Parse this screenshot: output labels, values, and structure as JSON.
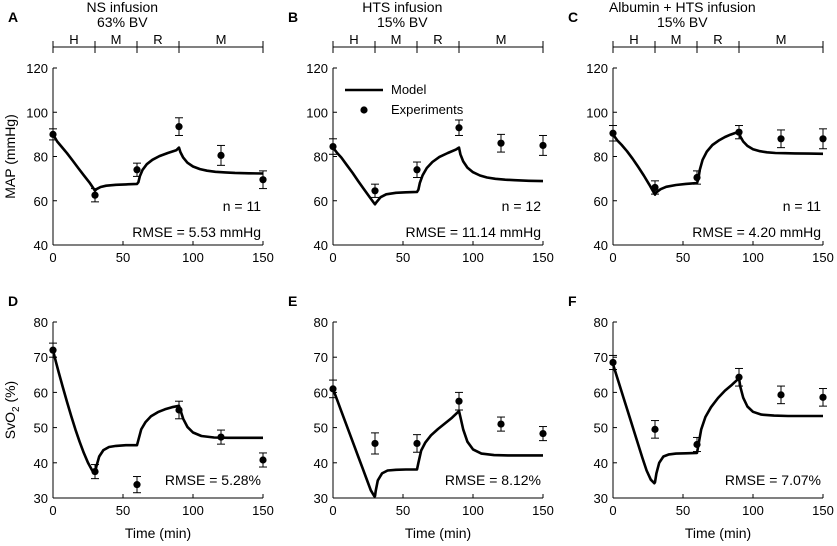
{
  "figure": {
    "legend": {
      "model": "Model",
      "experiments": "Experiments"
    },
    "phases": [
      "H",
      "M",
      "R",
      "M"
    ],
    "phase_boundaries": [
      0,
      30,
      60,
      90,
      150
    ]
  },
  "chart_data": [
    {
      "panel": "A",
      "type": "line",
      "title": "NS infusion",
      "subtitle": "63% BV",
      "xlabel": "",
      "ylabel": "MAP (mmHg)",
      "xlim": [
        0,
        150
      ],
      "ylim": [
        40,
        120
      ],
      "xticks": [
        0,
        50,
        100,
        150
      ],
      "yticks": [
        40,
        60,
        80,
        100,
        120
      ],
      "n_label": "n = 11",
      "rmse_label": "RMSE = 5.53 mmHg",
      "model": {
        "x": [
          0,
          3,
          6,
          10,
          14,
          18,
          22,
          26,
          29,
          30,
          31,
          34,
          38,
          45,
          52,
          60,
          61,
          62,
          64,
          67,
          71,
          76,
          82,
          88,
          90,
          91,
          93,
          96,
          100,
          105,
          110,
          116,
          123,
          130,
          140,
          150
        ],
        "y": [
          90,
          86.8,
          84.5,
          81.5,
          78.2,
          74.8,
          71.5,
          68.3,
          65.5,
          64.5,
          65.2,
          66.2,
          66.8,
          67.2,
          67.4,
          67.6,
          68.4,
          71,
          74,
          76.5,
          78.5,
          80.2,
          81.6,
          82.8,
          84,
          82,
          79.5,
          77.2,
          75.5,
          74.3,
          73.6,
          73.1,
          72.8,
          72.6,
          72.4,
          72.3
        ]
      },
      "experiments": [
        {
          "x": 0,
          "y": 90,
          "err": 2.5
        },
        {
          "x": 30,
          "y": 62.5,
          "err": 3
        },
        {
          "x": 60,
          "y": 74,
          "err": 3
        },
        {
          "x": 90,
          "y": 93.5,
          "err": 4
        },
        {
          "x": 120,
          "y": 80.5,
          "err": 4.5
        },
        {
          "x": 150,
          "y": 69.5,
          "err": 4
        }
      ]
    },
    {
      "panel": "B",
      "type": "line",
      "title": "HTS infusion",
      "subtitle": "15% BV",
      "xlabel": "",
      "ylabel": "",
      "xlim": [
        0,
        150
      ],
      "ylim": [
        40,
        120
      ],
      "xticks": [
        0,
        50,
        100,
        150
      ],
      "yticks": [
        40,
        60,
        80,
        100,
        120
      ],
      "n_label": "n = 12",
      "rmse_label": "RMSE = 11.14 mmHg",
      "show_legend": true,
      "model": {
        "x": [
          0,
          3,
          6,
          10,
          14,
          18,
          22,
          26,
          29,
          30,
          31,
          34,
          38,
          45,
          52,
          60,
          61,
          62,
          64,
          67,
          71,
          76,
          82,
          88,
          90,
          91,
          93,
          96,
          100,
          105,
          110,
          116,
          123,
          130,
          140,
          150
        ],
        "y": [
          84,
          81.6,
          79.5,
          76,
          72.6,
          68.9,
          65.3,
          61.8,
          59.2,
          58.4,
          59.3,
          61.6,
          62.9,
          63.6,
          63.8,
          64,
          65,
          68,
          71.5,
          74.8,
          77.5,
          79.8,
          81.6,
          83.2,
          84,
          81,
          77.8,
          75,
          72.9,
          71.4,
          70.5,
          69.9,
          69.5,
          69.3,
          69,
          68.9
        ]
      },
      "experiments": [
        {
          "x": 0,
          "y": 84.5,
          "err": 3.5
        },
        {
          "x": 30,
          "y": 64.5,
          "err": 3
        },
        {
          "x": 60,
          "y": 74,
          "err": 3.5
        },
        {
          "x": 90,
          "y": 93,
          "err": 3.5
        },
        {
          "x": 120,
          "y": 86,
          "err": 4
        },
        {
          "x": 150,
          "y": 85,
          "err": 4.5
        }
      ]
    },
    {
      "panel": "C",
      "type": "line",
      "title": "Albumin + HTS infusion",
      "subtitle": "15% BV",
      "xlabel": "",
      "ylabel": "",
      "xlim": [
        0,
        150
      ],
      "ylim": [
        40,
        120
      ],
      "xticks": [
        0,
        50,
        100,
        150
      ],
      "yticks": [
        40,
        60,
        80,
        100,
        120
      ],
      "n_label": "n = 11",
      "rmse_label": "RMSE = 4.20 mmHg",
      "model": {
        "x": [
          0,
          3,
          6,
          10,
          14,
          18,
          22,
          26,
          29,
          30,
          31,
          34,
          38,
          45,
          52,
          60,
          61,
          62,
          64,
          67,
          71,
          76,
          80,
          84,
          88,
          90,
          91,
          93,
          96,
          100,
          105,
          110,
          116,
          123,
          130,
          140,
          150
        ],
        "y": [
          90,
          87.3,
          85.4,
          82.4,
          79,
          75.3,
          71.4,
          67.2,
          63.8,
          62.8,
          63.8,
          65.2,
          66.3,
          67.1,
          67.6,
          68,
          70,
          74,
          78.5,
          82.2,
          85.2,
          87.4,
          88.8,
          89.9,
          90.8,
          91,
          89,
          86.8,
          84.8,
          83.3,
          82.4,
          81.9,
          81.6,
          81.5,
          81.4,
          81.3,
          81.2
        ]
      },
      "experiments": [
        {
          "x": 0,
          "y": 90.5,
          "err": 3.5
        },
        {
          "x": 30,
          "y": 66,
          "err": 3
        },
        {
          "x": 60,
          "y": 70.5,
          "err": 3
        },
        {
          "x": 90,
          "y": 91,
          "err": 3
        },
        {
          "x": 120,
          "y": 88,
          "err": 4
        },
        {
          "x": 150,
          "y": 88,
          "err": 4.5
        }
      ]
    },
    {
      "panel": "D",
      "type": "line",
      "xlabel": "Time (min)",
      "ylabel": "SvO2 (%)",
      "ylabel_main": "SvO",
      "ylabel_sub": "2",
      "ylabel_tail": " (%)",
      "xlim": [
        0,
        150
      ],
      "ylim": [
        30,
        80
      ],
      "xticks": [
        0,
        50,
        100,
        150
      ],
      "yticks": [
        30,
        40,
        50,
        60,
        70,
        80
      ],
      "rmse_label": "RMSE = 5.28%",
      "model": {
        "x": [
          0,
          2,
          4,
          7,
          10,
          13,
          16,
          19,
          22,
          25,
          28,
          30,
          31,
          33,
          36,
          40,
          45,
          52,
          60,
          61,
          63,
          66,
          70,
          75,
          80,
          85,
          90,
          91,
          93,
          96,
          100,
          106,
          115,
          125,
          150
        ],
        "y": [
          72,
          68.8,
          65.8,
          61.5,
          57.3,
          53.3,
          49.5,
          46,
          42.8,
          40,
          37.8,
          37,
          39,
          41.8,
          43.6,
          44.5,
          44.8,
          45,
          45,
          46.5,
          49.5,
          51.5,
          53.2,
          54.4,
          55.2,
          55.8,
          56.2,
          55,
          52.5,
          50.2,
          48.6,
          47.6,
          47.2,
          47.1,
          47.1
        ]
      },
      "experiments": [
        {
          "x": 0,
          "y": 72,
          "err": 2
        },
        {
          "x": 30,
          "y": 37.5,
          "err": 2
        },
        {
          "x": 60,
          "y": 33.8,
          "err": 2.3
        },
        {
          "x": 90,
          "y": 55,
          "err": 2.5
        },
        {
          "x": 120,
          "y": 47.3,
          "err": 2
        },
        {
          "x": 150,
          "y": 40.8,
          "err": 2
        }
      ]
    },
    {
      "panel": "E",
      "type": "line",
      "xlabel": "Time (min)",
      "ylabel": "",
      "xlim": [
        0,
        150
      ],
      "ylim": [
        30,
        80
      ],
      "xticks": [
        0,
        50,
        100,
        150
      ],
      "yticks": [
        30,
        40,
        50,
        60,
        70,
        80
      ],
      "rmse_label": "RMSE = 8.12%",
      "model": {
        "x": [
          0,
          3,
          6,
          9,
          12,
          15,
          18,
          21,
          24,
          27,
          29.5,
          30,
          30.5,
          32,
          35,
          39,
          45,
          52,
          60,
          61,
          63,
          66,
          70,
          75,
          80,
          85,
          90,
          91,
          93,
          96,
          100,
          106,
          115,
          125,
          150
        ],
        "y": [
          61,
          57.8,
          54.6,
          51.4,
          48.2,
          45,
          41.8,
          38.6,
          35.4,
          32.2,
          30.5,
          30.5,
          32,
          35,
          37,
          37.8,
          38,
          38.1,
          38.1,
          40,
          43.5,
          45.8,
          47.8,
          49.6,
          51.2,
          52.8,
          54.7,
          53,
          49.5,
          46,
          43.8,
          42.6,
          42.2,
          42.1,
          42.1
        ]
      },
      "experiments": [
        {
          "x": 0,
          "y": 61,
          "err": 2.5
        },
        {
          "x": 30,
          "y": 45.5,
          "err": 3
        },
        {
          "x": 60,
          "y": 45.5,
          "err": 2.5
        },
        {
          "x": 90,
          "y": 57.5,
          "err": 2.5
        },
        {
          "x": 120,
          "y": 51,
          "err": 2
        },
        {
          "x": 150,
          "y": 48.3,
          "err": 2
        }
      ]
    },
    {
      "panel": "F",
      "type": "line",
      "xlabel": "Time (min)",
      "ylabel": "",
      "xlim": [
        0,
        150
      ],
      "ylim": [
        30,
        80
      ],
      "xticks": [
        0,
        50,
        100,
        150
      ],
      "yticks": [
        30,
        40,
        50,
        60,
        70,
        80
      ],
      "rmse_label": "RMSE = 7.07%",
      "model": {
        "x": [
          0,
          3,
          6,
          9,
          12,
          15,
          18,
          21,
          24,
          27,
          29.5,
          30,
          31,
          33,
          36,
          40,
          45,
          52,
          60,
          61,
          63,
          66,
          70,
          75,
          80,
          85,
          88,
          90,
          91,
          93,
          96,
          100,
          106,
          115,
          125,
          150
        ],
        "y": [
          68,
          64.2,
          60.4,
          56.6,
          52.8,
          49,
          45.2,
          41.4,
          37.8,
          35.2,
          34.2,
          34.5,
          37,
          40,
          41.8,
          42.4,
          42.6,
          42.7,
          42.8,
          45,
          49.5,
          53,
          55.8,
          58.4,
          60.5,
          62.2,
          63.3,
          64,
          61.5,
          58.5,
          56,
          54.5,
          53.7,
          53.4,
          53.3,
          53.3
        ]
      },
      "experiments": [
        {
          "x": 0,
          "y": 68.5,
          "err": 2
        },
        {
          "x": 30,
          "y": 49.5,
          "err": 2.5
        },
        {
          "x": 60,
          "y": 45.2,
          "err": 2
        },
        {
          "x": 90,
          "y": 64.3,
          "err": 2.5
        },
        {
          "x": 120,
          "y": 59.3,
          "err": 2.5
        },
        {
          "x": 150,
          "y": 58.6,
          "err": 2.5
        }
      ]
    }
  ]
}
